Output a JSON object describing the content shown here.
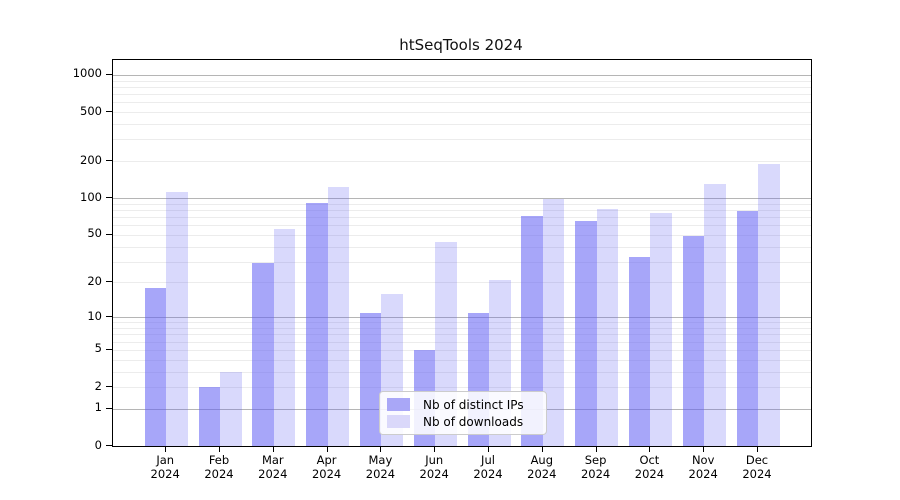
{
  "title": "htSeqTools 2024",
  "chart_data": {
    "type": "bar",
    "title": "htSeqTools 2024",
    "categories": [
      "Jan",
      "Feb",
      "Mar",
      "Apr",
      "May",
      "Jun",
      "Jul",
      "Aug",
      "Sep",
      "Oct",
      "Nov",
      "Dec"
    ],
    "category_year": "2024",
    "series": [
      {
        "name": "Nb of distinct IPs",
        "key": "distinct-ips",
        "bar_color": "rgba(98,96,244,0.56)",
        "legend_color": "#a9a7f7",
        "values": [
          18,
          2,
          29,
          92,
          11,
          5,
          11,
          72,
          65,
          33,
          49,
          79
        ]
      },
      {
        "name": "Nb of downloads",
        "key": "downloads",
        "bar_color": "rgba(98,96,244,0.24)",
        "legend_color": "#dad8fa",
        "values": [
          112,
          3,
          56,
          123,
          16,
          44,
          21,
          98,
          81,
          76,
          130,
          188
        ]
      }
    ],
    "y_axis": {
      "scale": "log10(1+y)",
      "tick_values": [
        1000,
        500,
        200,
        100,
        50,
        20,
        10,
        5,
        2,
        1,
        0
      ],
      "top_value": 1320
    },
    "x_axis": {
      "label_line2": "2024"
    },
    "grid": {
      "major_color": "#b5b5b5",
      "minor_color": "#ececec",
      "major_at": [
        1,
        10,
        100,
        1000
      ],
      "minor_multipliers": [
        2,
        3,
        4,
        5,
        6,
        7,
        8,
        9
      ]
    },
    "legend_position": "inside-bottom-center",
    "ylim": [
      0,
      1320
    ],
    "xlabel": "",
    "ylabel": ""
  }
}
